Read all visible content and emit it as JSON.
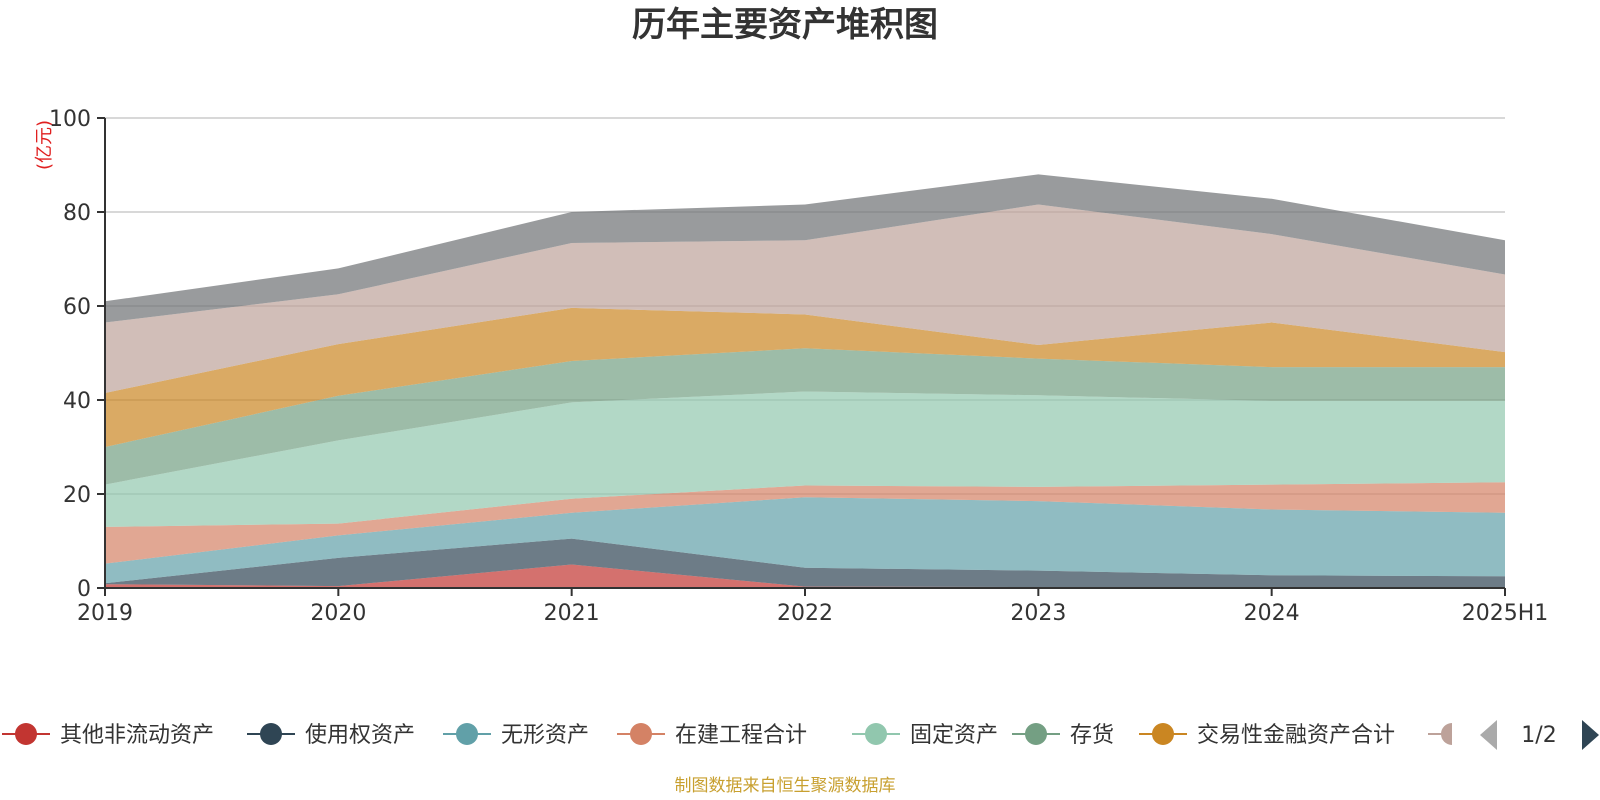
{
  "chart_data": {
    "type": "area",
    "stacked": true,
    "title": "历年主要资产堆积图",
    "unit": "(亿元)",
    "x": [
      "2019",
      "2020",
      "2021",
      "2022",
      "2023",
      "2024",
      "2025H1"
    ],
    "ylim": [
      0,
      100
    ],
    "yticks": [
      0,
      20,
      40,
      60,
      80,
      100
    ],
    "grid": true,
    "legend_position": "bottom",
    "series": [
      {
        "name": "其他非流动资产",
        "color": "#c23531",
        "values": [
          0.8,
          0.4,
          5.0,
          0.3,
          0.2,
          0.2,
          0.2
        ]
      },
      {
        "name": "使用权资产",
        "color": "#2f4554",
        "values": [
          0.2,
          6.0,
          5.5,
          4.0,
          3.5,
          2.5,
          2.3
        ]
      },
      {
        "name": "无形资产",
        "color": "#61a0a8",
        "values": [
          4.2,
          4.8,
          5.5,
          15.0,
          14.8,
          14.0,
          13.5
        ]
      },
      {
        "name": "在建工程合计",
        "color": "#d48265",
        "values": [
          7.8,
          2.5,
          3.0,
          2.5,
          3.0,
          5.3,
          6.5
        ]
      },
      {
        "name": "固定资产",
        "color": "#91c7ae",
        "values": [
          9.0,
          17.7,
          20.5,
          20.0,
          19.5,
          17.8,
          17.3
        ]
      },
      {
        "name": "存货",
        "color": "#749f83",
        "values": [
          8.0,
          9.5,
          8.8,
          9.2,
          7.8,
          7.2,
          7.2
        ]
      },
      {
        "name": "交易性金融资产合计",
        "color": "#ca8622",
        "values": [
          11.5,
          11.0,
          11.3,
          7.2,
          2.9,
          9.5,
          3.2
        ]
      },
      {
        "name": "",
        "color": "#bda29a",
        "values": [
          15.0,
          10.6,
          13.8,
          15.8,
          29.9,
          18.8,
          16.5
        ]
      },
      {
        "name": "",
        "color": "#6e7074",
        "values": [
          4.5,
          5.5,
          6.6,
          7.6,
          6.4,
          7.5,
          7.3
        ]
      }
    ],
    "legend": {
      "entries": [
        {
          "name": "其他非流动资产",
          "color": "#c23531"
        },
        {
          "name": "使用权资产",
          "color": "#2f4554"
        },
        {
          "name": "无形资产",
          "color": "#61a0a8"
        },
        {
          "name": "在建工程合计",
          "color": "#d48265"
        },
        {
          "name": "固定资产",
          "color": "#91c7ae"
        },
        {
          "name": "存货",
          "color": "#749f83"
        },
        {
          "name": "交易性金融资产合计",
          "color": "#ca8622"
        }
      ],
      "page_indicator": "1/2"
    },
    "source": "制图数据来自恒生聚源数据库"
  }
}
